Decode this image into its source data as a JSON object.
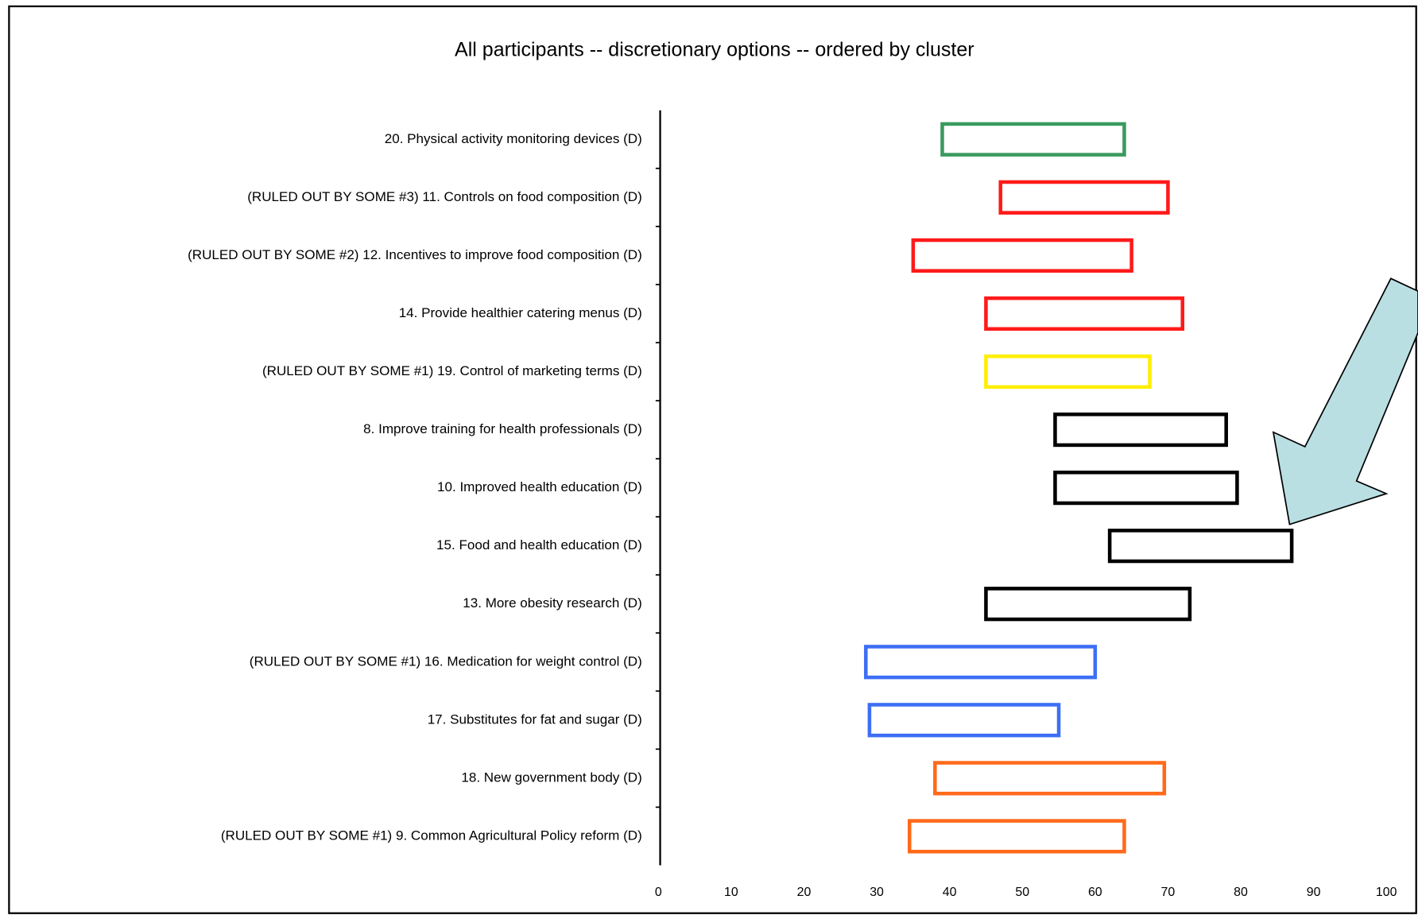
{
  "chart_data": {
    "type": "floating-bar",
    "title": "All participants -- discretionary options -- ordered by cluster",
    "categories": [
      "20. Physical activity monitoring devices (D)",
      "(RULED OUT BY SOME #3) 11. Controls on food composition (D)",
      "(RULED OUT BY SOME #2) 12. Incentives to improve food composition (D)",
      "14. Provide healthier catering menus (D)",
      "(RULED OUT BY SOME #1) 19. Control of marketing terms (D)",
      "8. Improve training for health professionals (D)",
      "10. Improved health education (D)",
      "15. Food and health education (D)",
      "13. More obesity research (D)",
      "(RULED OUT BY SOME #1) 16. Medication for weight control (D)",
      "17. Substitutes for fat and sugar (D)",
      "18. New government body (D)",
      "(RULED OUT BY SOME #1) 9. Common Agricultural Policy reform (D)"
    ],
    "low": [
      39,
      47,
      35,
      45,
      45,
      54.5,
      54.5,
      62,
      45,
      28.5,
      29,
      38,
      34.5
    ],
    "high": [
      64,
      70,
      65,
      72,
      67.5,
      78,
      79.5,
      87,
      73,
      60,
      55,
      69.5,
      64
    ],
    "colors": [
      "#3a9a5e",
      "#ff1a1a",
      "#ff1a1a",
      "#ff1a1a",
      "#ffee00",
      "#000000",
      "#000000",
      "#000000",
      "#000000",
      "#3d6ef5",
      "#3d6ef5",
      "#ff6a1a",
      "#ff6a1a"
    ],
    "xlim": [
      0,
      100
    ],
    "xticks": [
      0,
      10,
      20,
      30,
      40,
      50,
      60,
      70,
      80,
      90,
      100
    ]
  }
}
